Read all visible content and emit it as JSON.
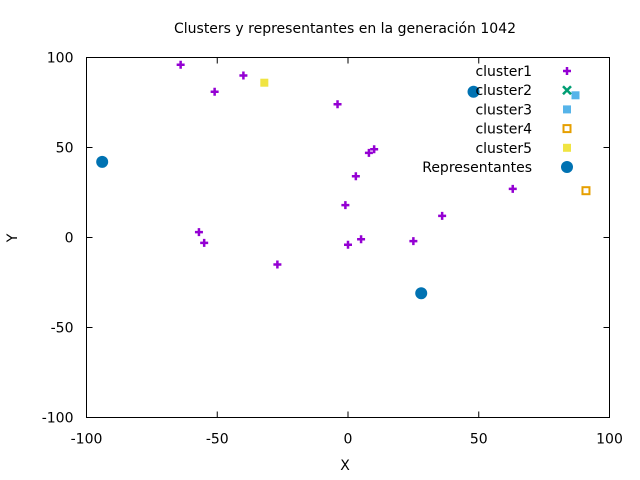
{
  "chart_data": {
    "type": "scatter",
    "title": "Clusters y representantes en la generación 1042",
    "xlabel": "X",
    "ylabel": "Y",
    "xlim": [
      -100,
      100
    ],
    "ylim": [
      -100,
      100
    ],
    "xticks": [
      -100,
      -50,
      0,
      50,
      100
    ],
    "yticks": [
      -100,
      -50,
      0,
      50,
      100
    ],
    "xtick_labels": [
      "-100",
      "-50",
      "0",
      "50",
      "100"
    ],
    "ytick_labels": [
      "-100",
      "-50",
      "0",
      "50",
      "100"
    ],
    "grid": false,
    "legend_position": "top-right",
    "series": [
      {
        "name": "cluster1",
        "marker": "plus",
        "color": "#9400d3",
        "points": [
          [
            -64,
            96
          ],
          [
            -40,
            90
          ],
          [
            -51,
            81
          ],
          [
            -4,
            74
          ],
          [
            8,
            47
          ],
          [
            10,
            49
          ],
          [
            3,
            34
          ],
          [
            -1,
            18
          ],
          [
            -57,
            3
          ],
          [
            -55,
            -3
          ],
          [
            0,
            -4
          ],
          [
            5,
            -1
          ],
          [
            -27,
            -15
          ],
          [
            25,
            -2
          ],
          [
            36,
            12
          ],
          [
            63,
            27
          ]
        ]
      },
      {
        "name": "cluster2",
        "marker": "cross",
        "color": "#009e73",
        "points": []
      },
      {
        "name": "cluster3",
        "marker": "filled-square",
        "color": "#56b4e9",
        "points": [
          [
            87,
            79
          ]
        ]
      },
      {
        "name": "cluster4",
        "marker": "open-square",
        "color": "#e69f00",
        "points": [
          [
            91,
            26
          ]
        ]
      },
      {
        "name": "cluster5",
        "marker": "filled-square",
        "color": "#f0e442",
        "points": [
          [
            -32,
            86
          ]
        ]
      },
      {
        "name": "Representantes",
        "marker": "filled-circle",
        "color": "#0072b2",
        "points": [
          [
            -94,
            42
          ],
          [
            48,
            81
          ],
          [
            28,
            -31
          ]
        ]
      }
    ]
  }
}
